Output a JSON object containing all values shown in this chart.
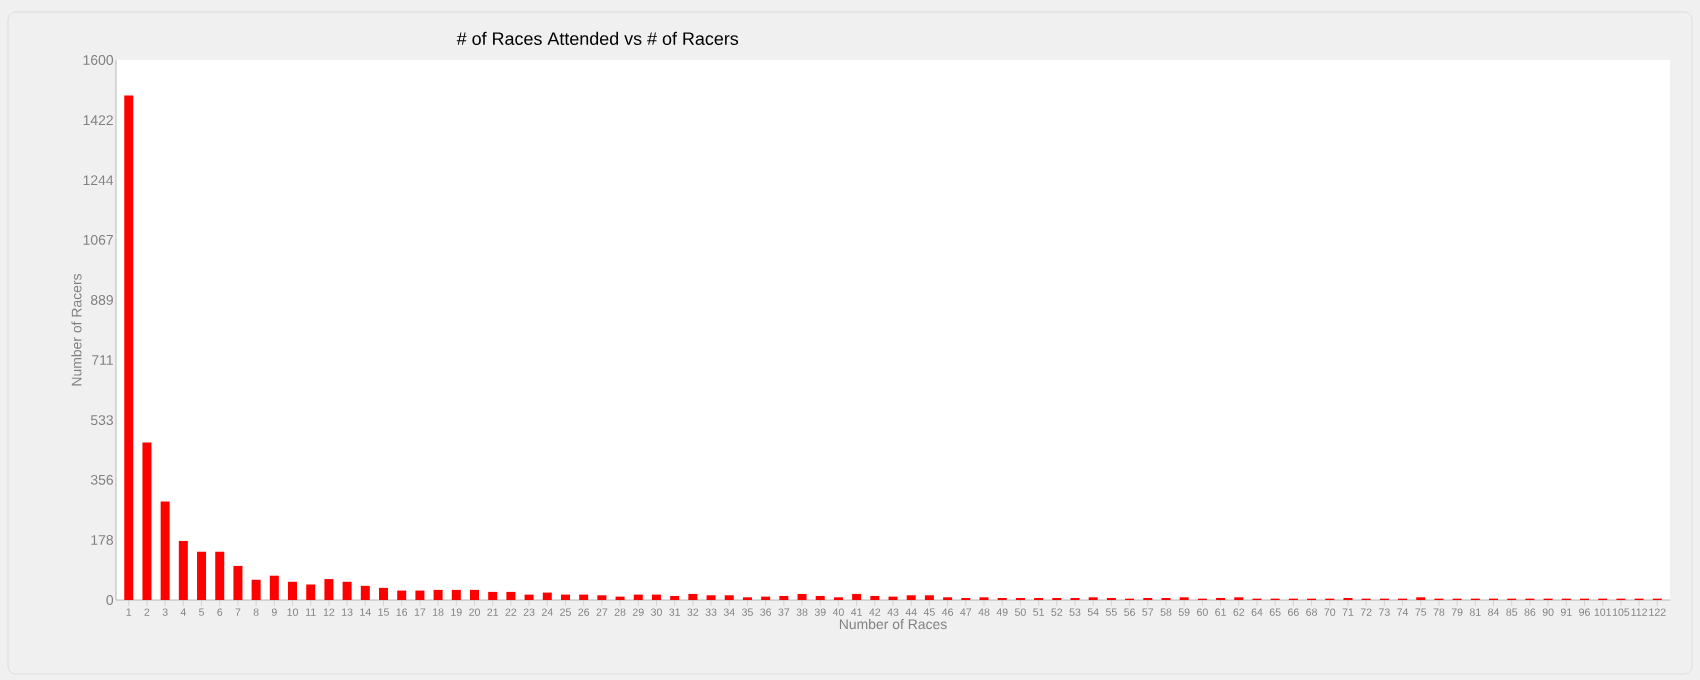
{
  "chart_data": {
    "type": "bar",
    "title": "# of Races Attended vs # of Racers",
    "xlabel": "Number of Races",
    "ylabel": "Number of Racers",
    "categories": [
      "1",
      "2",
      "3",
      "4",
      "5",
      "6",
      "7",
      "8",
      "9",
      "10",
      "11",
      "12",
      "13",
      "14",
      "15",
      "16",
      "17",
      "18",
      "19",
      "20",
      "21",
      "22",
      "23",
      "24",
      "25",
      "26",
      "27",
      "28",
      "29",
      "30",
      "31",
      "32",
      "33",
      "34",
      "35",
      "36",
      "37",
      "38",
      "39",
      "40",
      "41",
      "42",
      "43",
      "44",
      "45",
      "46",
      "47",
      "48",
      "49",
      "50",
      "51",
      "52",
      "53",
      "54",
      "55",
      "56",
      "57",
      "58",
      "59",
      "60",
      "61",
      "62",
      "64",
      "65",
      "66",
      "68",
      "70",
      "71",
      "72",
      "73",
      "74",
      "75",
      "78",
      "79",
      "81",
      "84",
      "85",
      "86",
      "90",
      "91",
      "96",
      "101",
      "105",
      "112",
      "122"
    ],
    "values": [
      1495,
      467,
      292,
      175,
      143,
      143,
      101,
      60,
      72,
      54,
      46,
      62,
      54,
      42,
      36,
      28,
      28,
      30,
      30,
      30,
      24,
      24,
      16,
      22,
      16,
      16,
      14,
      10,
      16,
      16,
      12,
      18,
      14,
      14,
      8,
      10,
      12,
      18,
      12,
      8,
      18,
      12,
      10,
      14,
      14,
      8,
      6,
      8,
      6,
      6,
      6,
      6,
      6,
      8,
      6,
      4,
      6,
      6,
      8,
      4,
      6,
      8,
      4,
      4,
      4,
      4,
      4,
      6,
      4,
      4,
      4,
      8,
      4,
      4,
      4,
      4,
      4,
      4,
      4,
      4,
      4,
      4,
      4,
      4,
      4
    ],
    "color": "#ff0000",
    "ylim": [
      0,
      1600
    ],
    "yticks": [
      0,
      178,
      356,
      533,
      711,
      889,
      1067,
      1244,
      1422,
      1600
    ]
  }
}
